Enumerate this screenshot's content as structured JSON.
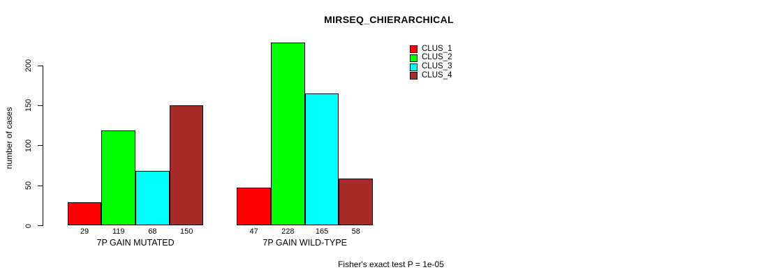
{
  "title": "MIRSEQ_CHIERARCHICAL",
  "footer": {
    "note": "Fisher's exact test P = 1e-05"
  },
  "chart_data": {
    "type": "bar",
    "title": "MIRSEQ_CHIERARCHICAL",
    "xlabel": "",
    "ylabel": "number of cases",
    "categories": [
      "7P GAIN MUTATED",
      "7P GAIN WILD-TYPE"
    ],
    "series": [
      {
        "name": "CLUS_1",
        "color": "#FF0000",
        "values": [
          29,
          47
        ]
      },
      {
        "name": "CLUS_2",
        "color": "#00FF00",
        "values": [
          119,
          228
        ]
      },
      {
        "name": "CLUS_3",
        "color": "#00FFFF",
        "values": [
          68,
          165
        ]
      },
      {
        "name": "CLUS_4",
        "color": "#A52A2A",
        "values": [
          150,
          58
        ]
      }
    ],
    "yticks": [
      0,
      50,
      100,
      150,
      200
    ],
    "ylim": [
      0,
      228
    ],
    "grid": false,
    "legend_position": "top-right",
    "bar_value_labels_shown": true,
    "annotation": "Fisher's exact test P = 1e-05"
  }
}
